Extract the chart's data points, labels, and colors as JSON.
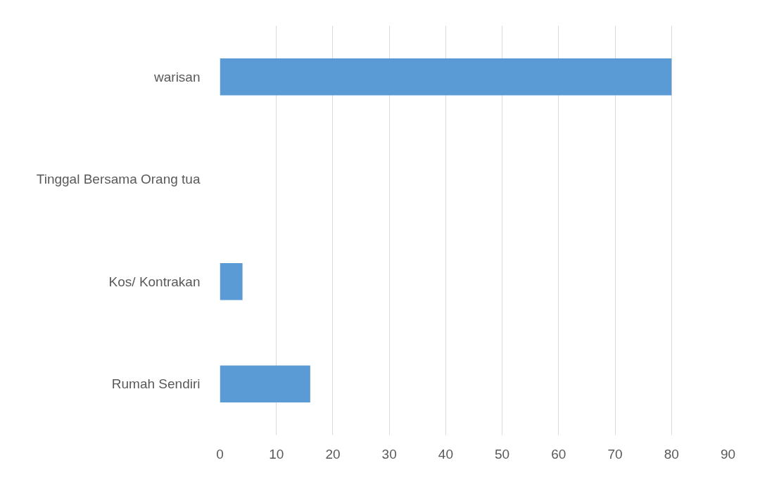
{
  "chart_data": {
    "type": "bar",
    "orientation": "horizontal",
    "categories": [
      "warisan",
      "Tinggal Bersama Orang tua",
      "Kos/ Kontrakan",
      "Rumah Sendiri"
    ],
    "values": [
      80,
      0,
      4,
      16
    ],
    "color": "#5b9bd5",
    "xlim": [
      0,
      90
    ],
    "xticks": [
      0,
      10,
      20,
      30,
      40,
      50,
      60,
      70,
      80,
      90
    ],
    "grid": "x"
  }
}
